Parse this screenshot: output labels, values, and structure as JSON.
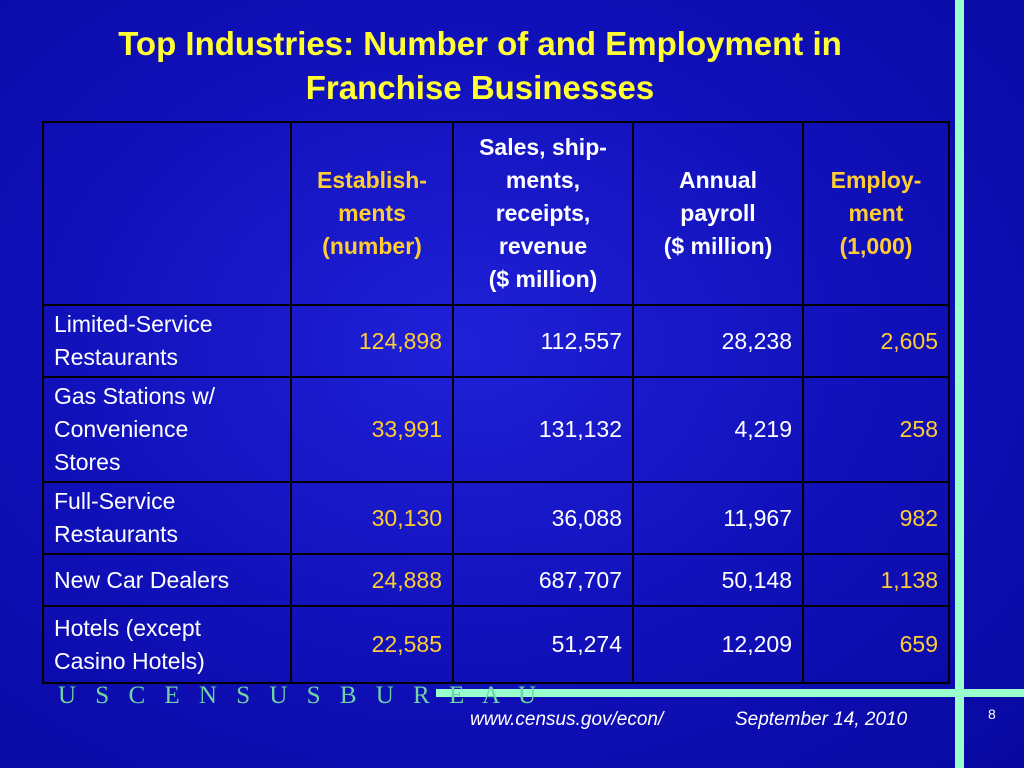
{
  "slide": {
    "title_line1": "Top Industries:  Number of and Employment in",
    "title_line2": "Franchise Businesses",
    "page_number": "8"
  },
  "table": {
    "headers": [
      "",
      "Establish-ments (number)",
      "Sales, ship-ments, receipts, revenue ($ million)",
      "Annual payroll ($ million)",
      "Employ-ment (1,000)"
    ],
    "header_lines": {
      "establishments": [
        "Establish-",
        "ments",
        "(number)"
      ],
      "sales": [
        "Sales, ship-",
        "ments,",
        "receipts,",
        "revenue",
        "($ million)"
      ],
      "payroll": [
        "Annual",
        "payroll",
        "($ million)"
      ],
      "employment": [
        "Employ-",
        "ment",
        "(1,000)"
      ]
    },
    "rows": [
      {
        "industry_lines": [
          "Limited-Service",
          "Restaurants"
        ],
        "establishments": "124,898",
        "sales": "112,557",
        "payroll": "28,238",
        "employment": "2,605"
      },
      {
        "industry_lines": [
          "Gas Stations w/",
          "Convenience",
          "Stores"
        ],
        "establishments": "33,991",
        "sales": "131,132",
        "payroll": "4,219",
        "employment": "258"
      },
      {
        "industry_lines": [
          "Full-Service",
          "Restaurants"
        ],
        "establishments": "30,130",
        "sales": "36,088",
        "payroll": "11,967",
        "employment": "982"
      },
      {
        "industry_lines": [
          "New Car Dealers"
        ],
        "establishments": "24,888",
        "sales": "687,707",
        "payroll": "50,148",
        "employment": "1,138"
      },
      {
        "industry_lines": [
          "Hotels (except",
          "Casino Hotels)"
        ],
        "establishments": "22,585",
        "sales": "51,274",
        "payroll": "12,209",
        "employment": "659"
      }
    ]
  },
  "footer": {
    "bureau": "U S C E N S U S B U R E A U",
    "url": "www.census.gov/econ/",
    "date": "September 14, 2010"
  },
  "colors": {
    "background": "#1414c8",
    "title": "#ffff33",
    "highlight_column": "#ffcc33",
    "accent_bar": "#99ffcc"
  }
}
